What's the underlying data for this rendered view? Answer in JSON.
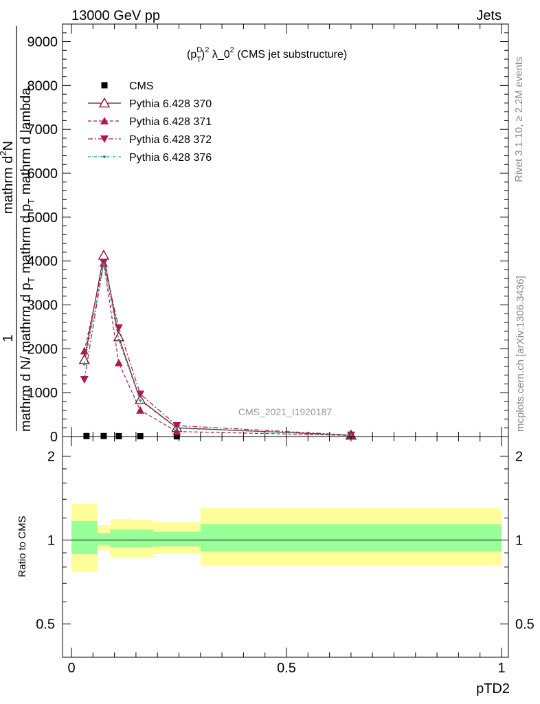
{
  "header": {
    "left": "13000 GeV pp",
    "right": "Jets"
  },
  "side_labels": {
    "rivet": "Rivet 3.1.10, ≥ 2.2M events",
    "mcplots": "mcplots.cern.ch [arXiv:1306.3436]"
  },
  "chart_data": [
    {
      "type": "line",
      "title": "(p_T^D)^2 λ_0^2 (CMS jet substructure)",
      "title_parts": {
        "open": "(p",
        "sup_D": "D",
        "sub_T": "T",
        "close": ")",
        "exp2": "2",
        "rest": " λ_0",
        "exp": "2",
        "tail": " (CMS jet substructure)"
      },
      "ylabel_parts": {
        "one": "1",
        "den1": "mathrm d N",
        "den2": "/ mathrm d p",
        "den_sub": "T",
        "den3": " mathrm d p",
        "den3_sub": "T",
        "den4": " mathrm d lambda",
        "num1": "mathrm d",
        "num_sup": "2",
        "num2": "N"
      },
      "watermark": "CMS_2021_I1920187",
      "xlim": [
        0,
        1
      ],
      "ylim": [
        0,
        9400
      ],
      "y_ticks": [
        {
          "value": 0,
          "label": "0"
        },
        {
          "value": 1000,
          "label": "1000"
        },
        {
          "value": 2000,
          "label": "2000"
        },
        {
          "value": 3000,
          "label": "3000"
        },
        {
          "value": 4000,
          "label": "4000"
        },
        {
          "value": 5000,
          "label": "5000"
        },
        {
          "value": 6000,
          "label": "6000"
        },
        {
          "value": 7000,
          "label": "7000"
        },
        {
          "value": 8000,
          "label": "8000"
        },
        {
          "value": 9000,
          "label": "9000"
        }
      ],
      "grid": false,
      "legend_position": "top-left",
      "series": [
        {
          "name": "CMS",
          "style": "data",
          "color": "#000000",
          "x": [
            0.035,
            0.075,
            0.11,
            0.16,
            0.245
          ],
          "y": [
            12,
            12,
            10,
            8,
            6
          ]
        },
        {
          "name": "Pythia 6.428 370",
          "style": "solid",
          "marker": "triangle-up-open",
          "color": "#7a0a1c",
          "x": [
            0.03,
            0.075,
            0.11,
            0.16,
            0.245,
            0.65
          ],
          "y": [
            1750,
            4130,
            2270,
            840,
            200,
            30
          ]
        },
        {
          "name": "Pythia 6.428 371",
          "style": "dashed",
          "marker": "triangle-up",
          "color": "#b01850",
          "x": [
            0.03,
            0.075,
            0.11,
            0.16,
            0.245,
            0.65
          ],
          "y": [
            1950,
            3950,
            1680,
            600,
            115,
            25
          ]
        },
        {
          "name": "Pythia 6.428 372",
          "style": "dash-dot",
          "marker": "triangle-down",
          "color": "#b01850",
          "x": [
            0.03,
            0.075,
            0.11,
            0.16,
            0.245,
            0.65
          ],
          "y": [
            1300,
            3970,
            2480,
            970,
            250,
            35
          ]
        },
        {
          "name": "Pythia 6.428 376",
          "style": "dash-dot-small",
          "marker": "dot",
          "color": "#1a9e7a",
          "x": [
            0.03,
            0.075,
            0.11,
            0.16,
            0.245,
            0.65
          ],
          "y": [
            1650,
            3920,
            2200,
            820,
            190,
            30
          ]
        }
      ]
    },
    {
      "type": "area",
      "ylabel": "Ratio to CMS",
      "xlabel": "pTD2",
      "xlim": [
        0,
        1
      ],
      "ylim": [
        0.38,
        2.35
      ],
      "y_scale": "log",
      "y_ticks": [
        {
          "value": 0.5,
          "label": "0.5"
        },
        {
          "value": 1,
          "label": "1"
        },
        {
          "value": 2,
          "label": "2"
        }
      ],
      "x_ticks": [
        {
          "value": 0,
          "label": "0"
        },
        {
          "value": 0.5,
          "label": "0.5"
        },
        {
          "value": 1,
          "label": "1"
        }
      ],
      "bands": {
        "colors": {
          "stat": "#99ff99",
          "total": "#ffff99"
        },
        "bins": [
          {
            "x0": 0.0,
            "x1": 0.06,
            "stat": [
              0.89,
              1.17
            ],
            "total": [
              0.77,
              1.35
            ]
          },
          {
            "x0": 0.06,
            "x1": 0.09,
            "stat": [
              0.96,
              1.06
            ],
            "total": [
              0.92,
              1.13
            ]
          },
          {
            "x0": 0.09,
            "x1": 0.14,
            "stat": [
              0.94,
              1.09
            ],
            "total": [
              0.87,
              1.19
            ]
          },
          {
            "x0": 0.14,
            "x1": 0.19,
            "stat": [
              0.94,
              1.09
            ],
            "total": [
              0.87,
              1.18
            ]
          },
          {
            "x0": 0.19,
            "x1": 0.3,
            "stat": [
              0.95,
              1.07
            ],
            "total": [
              0.89,
              1.16
            ]
          },
          {
            "x0": 0.3,
            "x1": 1.0,
            "stat": [
              0.91,
              1.14
            ],
            "total": [
              0.81,
              1.3
            ]
          }
        ]
      }
    }
  ]
}
